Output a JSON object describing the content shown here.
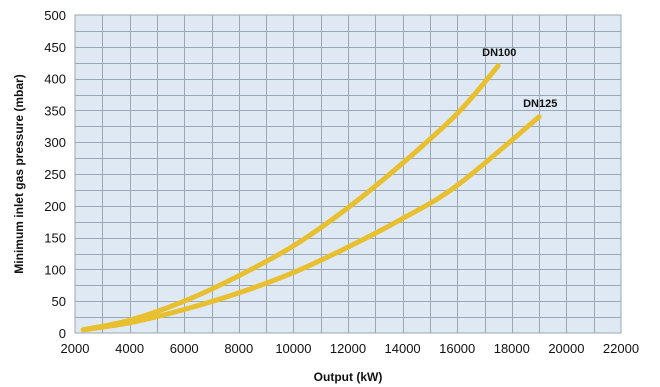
{
  "chart_data": {
    "type": "line",
    "title": "",
    "xlabel": "Output (kW)",
    "ylabel": "Minimum inlet gas pressure (mbar)",
    "xlim": [
      2000,
      22000
    ],
    "ylim": [
      0,
      500
    ],
    "x_ticks": [
      "2000",
      "4000",
      "6000",
      "8000",
      "10000",
      "12000",
      "14000",
      "16000",
      "18000",
      "20000",
      "22000"
    ],
    "y_ticks": [
      "0",
      "50",
      "100",
      "150",
      "200",
      "250",
      "300",
      "350",
      "400",
      "450",
      "500"
    ],
    "x_minor_step": 1000,
    "y_minor_step": 25,
    "grid": true,
    "background_color": "#dfe9f3",
    "grid_color": "#9aa7b5",
    "line_color": "#e8bf2e",
    "series": [
      {
        "name": "DN100",
        "x": [
          2300,
          4000,
          6000,
          8000,
          10000,
          12000,
          14000,
          16000,
          17500
        ],
        "y": [
          5,
          20,
          50,
          90,
          137,
          197,
          267,
          345,
          420
        ]
      },
      {
        "name": "DN125",
        "x": [
          2300,
          4000,
          6000,
          8000,
          10000,
          12000,
          14000,
          16000,
          19000
        ],
        "y": [
          5,
          16,
          37,
          63,
          95,
          135,
          180,
          232,
          340
        ]
      }
    ]
  }
}
